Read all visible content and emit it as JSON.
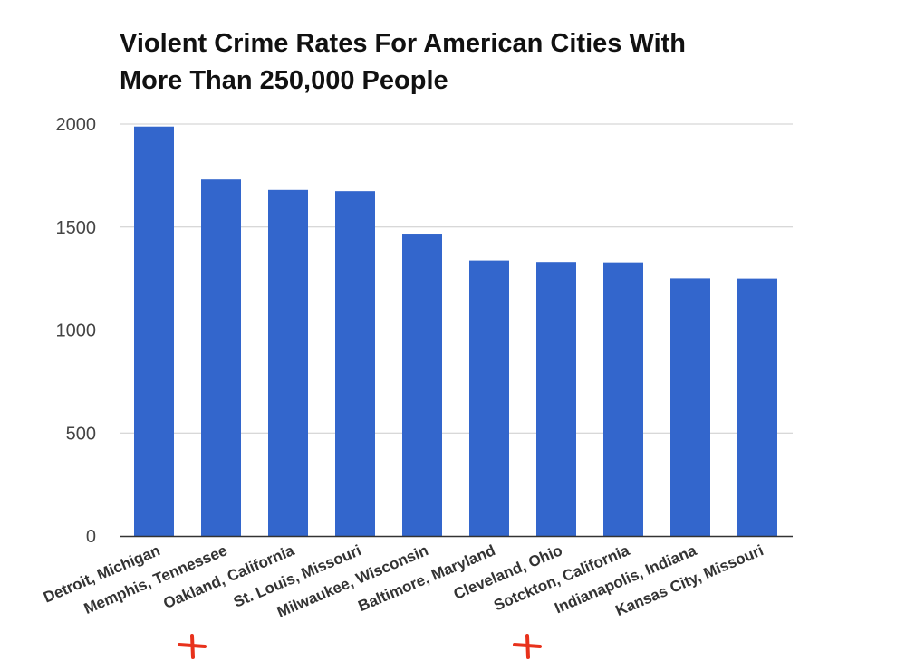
{
  "chart_data": {
    "type": "bar",
    "title_lines": [
      "Violent Crime Rates For American Cities With",
      "More Than 250,000 People"
    ],
    "xlabel": "",
    "ylabel": "",
    "ylim": [
      0,
      2000
    ],
    "yticks": [
      "0",
      "500",
      "1000",
      "1500",
      "2000"
    ],
    "grid": true,
    "legend": "none",
    "bar_color": "#3366cc",
    "categories": [
      "Detroit, Michigan",
      "Memphis, Tennessee",
      "Oakland, California",
      "St. Louis, Missouri",
      "Milwaukee, Wisconsin",
      "Baltimore, Maryland",
      "Cleveland, Ohio",
      "Sotckton, California",
      "Indianapolis, Indiana",
      "Kansas City, Missouri"
    ],
    "values": [
      1988,
      1731,
      1680,
      1674,
      1468,
      1338,
      1331,
      1329,
      1251,
      1250
    ]
  },
  "annotations": {
    "markers": [
      {
        "symbol": "+",
        "color": "#e8321c",
        "category_index": 2
      },
      {
        "symbol": "+",
        "color": "#e8321c",
        "category_index": 7
      }
    ]
  }
}
